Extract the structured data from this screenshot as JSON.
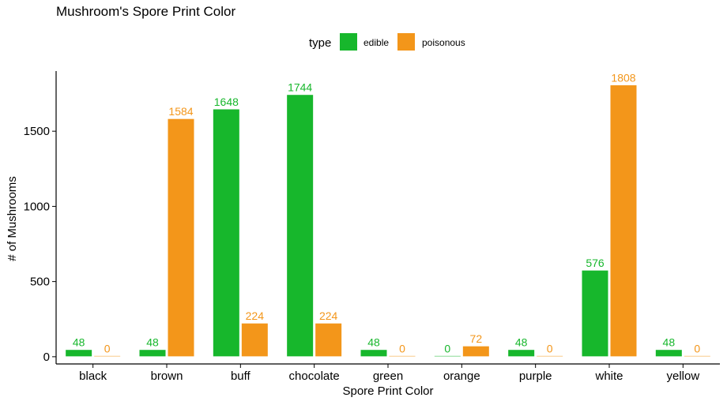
{
  "chart_data": {
    "type": "bar",
    "title": "Mushroom's Spore Print Color",
    "xlabel": "Spore Print Color",
    "ylabel": "# of Mushrooms",
    "legend_title": "type",
    "legend_position": "top",
    "categories": [
      "black",
      "brown",
      "buff",
      "chocolate",
      "green",
      "orange",
      "purple",
      "white",
      "yellow"
    ],
    "series": [
      {
        "name": "edible",
        "color": "#17b72c",
        "values": [
          48,
          48,
          1648,
          1744,
          48,
          0,
          48,
          576,
          48
        ]
      },
      {
        "name": "poisonous",
        "color": "#f3961a",
        "values": [
          0,
          1584,
          224,
          224,
          0,
          72,
          0,
          1808,
          0
        ]
      }
    ],
    "yticks": [
      0,
      500,
      1000,
      1500
    ],
    "ylim": [
      -48,
      1900
    ],
    "grid": false
  }
}
